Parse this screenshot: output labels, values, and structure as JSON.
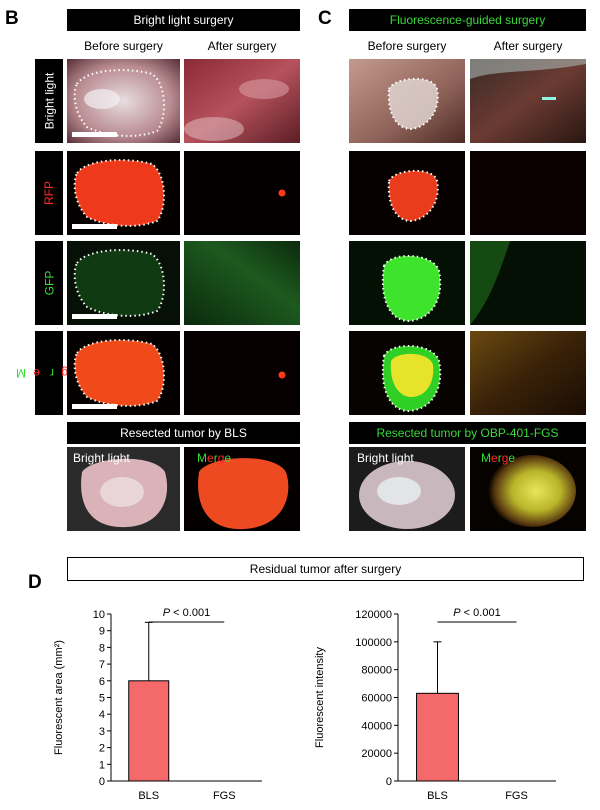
{
  "panel_b": {
    "letter": "B",
    "header": "Bright light surgery",
    "col_before": "Before surgery",
    "col_after": "After surgery",
    "rows": [
      {
        "label": "Bright light",
        "color": "#ffffff"
      },
      {
        "label": "RFP",
        "color": "#ff2a2a"
      },
      {
        "label": "GFP",
        "color": "#33dd33"
      },
      {
        "label_parts": [
          "M",
          "e",
          "r",
          "g",
          "e"
        ],
        "label": "Merge"
      }
    ],
    "resected_header": "Resected tumor by BLS",
    "resected_left": "Bright light",
    "resected_right": "Merge"
  },
  "panel_c": {
    "letter": "C",
    "header": "Fluorescence-guided surgery",
    "col_before": "Before surgery",
    "col_after": "After surgery",
    "resected_header": "Resected tumor by OBP-401-FGS",
    "resected_left": "Bright light",
    "resected_right": "Merge"
  },
  "panel_d": {
    "letter": "D",
    "title": "Residual tumor after surgery"
  },
  "chart_data": [
    {
      "type": "bar",
      "categories": [
        "BLS",
        "FGS"
      ],
      "values": [
        6.0,
        0.0
      ],
      "error": [
        3.5,
        0.0
      ],
      "ylabel": "Fluorescent area (mm²)",
      "ylim": [
        0,
        10
      ],
      "yticks": [
        "0",
        "1",
        "2",
        "3",
        "4",
        "5",
        "6",
        "7",
        "8",
        "9",
        "10"
      ],
      "significance": {
        "p_italic": "P",
        "text": " < 0.001"
      },
      "bar_color": "#f46a6a"
    },
    {
      "type": "bar",
      "categories": [
        "BLS",
        "FGS"
      ],
      "values": [
        63000,
        0
      ],
      "error": [
        37000,
        0
      ],
      "ylabel": "Fluorescent intensity",
      "ylim": [
        0,
        120000
      ],
      "yticks": [
        "0",
        "20000",
        "40000",
        "60000",
        "80000",
        "100000",
        "120000"
      ],
      "significance": {
        "p_italic": "P",
        "text": " < 0.001"
      },
      "bar_color": "#f46a6a"
    }
  ]
}
